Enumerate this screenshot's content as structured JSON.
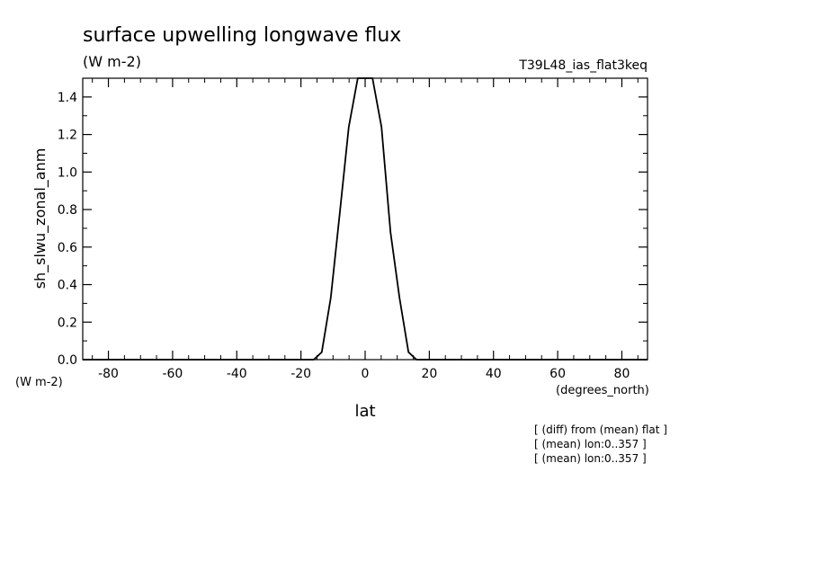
{
  "header": {
    "title": "surface upwelling longwave flux",
    "units": "(W m-2)",
    "experiment": "T39L48_ias_flat3keq"
  },
  "chart_data": {
    "type": "line",
    "title": "surface upwelling longwave flux",
    "ylabel": "sh_slwu_zonal_anm",
    "yunits": "(W m-2)",
    "xlabel": "lat",
    "xunits": "(degrees_north)",
    "xlim": [
      -88,
      88
    ],
    "ylim": [
      0,
      1.5
    ],
    "xticks": [
      -80,
      -60,
      -40,
      -20,
      0,
      20,
      40,
      60,
      80
    ],
    "xtick_labels": [
      "-80",
      "-60",
      "-40",
      "-20",
      "0",
      "20",
      "40",
      "60",
      "80"
    ],
    "yticks": [
      0,
      0.2,
      0.4,
      0.6,
      0.8,
      1.0,
      1.2,
      1.4
    ],
    "ytick_labels": [
      "0.0",
      "0.2",
      "0.4",
      "0.6",
      "0.8",
      "1.0",
      "1.2",
      "1.4"
    ],
    "grid": false,
    "series": [
      {
        "color": "#000000",
        "x": [
          -88,
          -16,
          -13.5,
          -10.7,
          -7.9,
          -5.1,
          -2.3,
          0,
          2.3,
          5.1,
          7.9,
          10.7,
          13.5,
          16,
          88
        ],
        "y": [
          0,
          0,
          0.04,
          0.33,
          0.78,
          1.24,
          1.5,
          1.5,
          1.5,
          1.24,
          0.68,
          0.33,
          0.04,
          0,
          0
        ]
      }
    ]
  },
  "footnotes": [
    "[ (diff) from (mean) flat ]",
    "[ (mean) lon:0..357 ]",
    "[ (mean) lon:0..357 ]"
  ]
}
